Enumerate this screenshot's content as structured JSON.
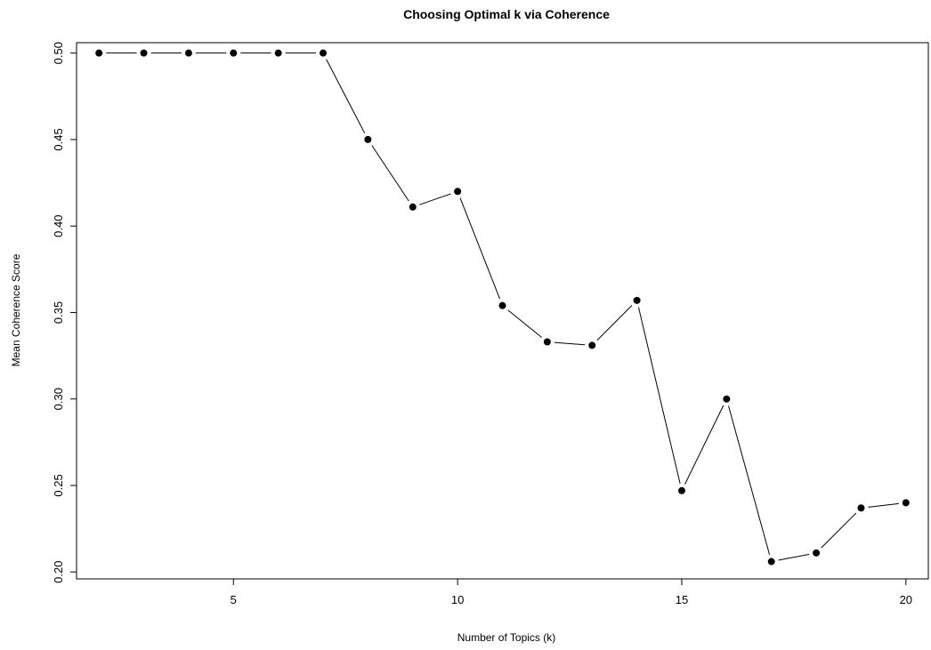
{
  "chart_data": {
    "type": "line",
    "title": "Choosing Optimal k via Coherence",
    "xlabel": "Number of Topics (k)",
    "ylabel": "Mean Coherence Score",
    "xlim": [
      1.5,
      20.5
    ],
    "ylim": [
      0.196,
      0.506
    ],
    "xticks": [
      "5",
      "10",
      "15",
      "20"
    ],
    "yticks": [
      "0.20",
      "0.25",
      "0.30",
      "0.35",
      "0.40",
      "0.45",
      "0.50"
    ],
    "grid": false,
    "series": [
      {
        "x": [
          2,
          3,
          4,
          5,
          6,
          7,
          8,
          9,
          10,
          11,
          12,
          13,
          14,
          15,
          16,
          17,
          18,
          19,
          20
        ],
        "values": [
          0.5,
          0.5,
          0.5,
          0.5,
          0.5,
          0.5,
          0.45,
          0.411,
          0.42,
          0.354,
          0.333,
          0.331,
          0.357,
          0.247,
          0.3,
          0.206,
          0.211,
          0.237,
          0.24
        ]
      }
    ],
    "marker_color": "#000000",
    "line_color": "#000000"
  }
}
